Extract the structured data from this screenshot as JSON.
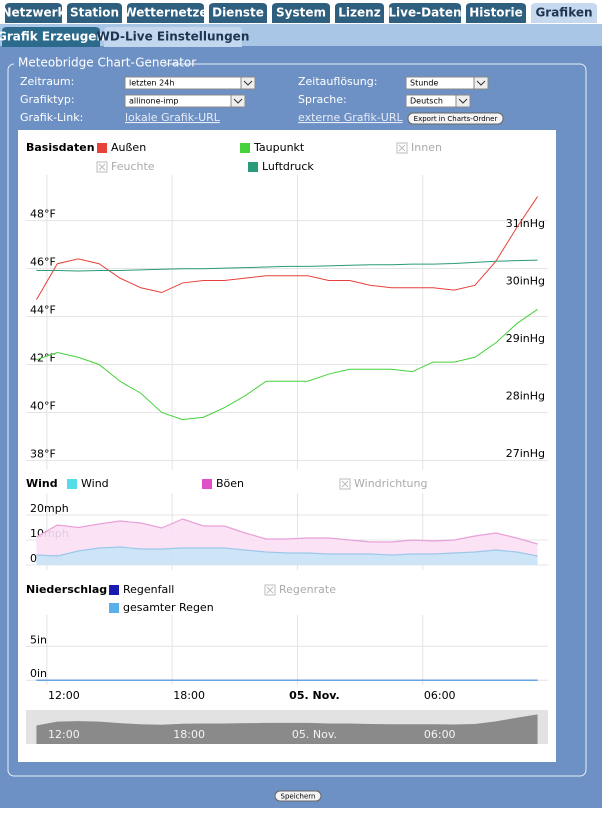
{
  "tabs": [
    "Netzwerk",
    "Station",
    "Wetternetze",
    "Dienste",
    "System",
    "Lizenz",
    "Live-Daten",
    "Historie",
    "Grafiken"
  ],
  "subtabs": [
    "Grafik Erzeugen",
    "WD-Live Einstellungen"
  ],
  "form": {
    "legend": "Meteobridge Chart-Generator",
    "zeitraum": {
      "label": "Zeitraum:",
      "value": "letzten 24h"
    },
    "aufloesung": {
      "label": "Zeitauflösung:",
      "value": "Stunde"
    },
    "grafiktyp": {
      "label": "Grafiktyp:",
      "value": "allinone-imp"
    },
    "sprache": {
      "label": "Sprache:",
      "value": "Deutsch"
    },
    "link": {
      "label": "Grafik-Link:",
      "local": "lokale Grafik-URL",
      "external": "externe Grafik-URL",
      "export": "Export in Charts-Ordner"
    }
  },
  "save": "Speichern",
  "chart_data": [
    {
      "type": "line",
      "title": "Basisdaten",
      "x": [
        11.5,
        12.5,
        13.5,
        14.5,
        15.5,
        16.5,
        17.5,
        18.5,
        19.5,
        20.5,
        21.5,
        22.5,
        23.5,
        24.5,
        25.5,
        26.5,
        27.5,
        28.5,
        29.5,
        30.5,
        31.5,
        32.5,
        33.5,
        34.5,
        35.5
      ],
      "xlim": [
        11,
        36
      ],
      "ylim": [
        37.6,
        49.9
      ],
      "yticks": [
        {
          "value": 38,
          "label": "38°F"
        },
        {
          "value": 40,
          "label": "40°F"
        },
        {
          "value": 42,
          "label": "42°F"
        },
        {
          "value": 44,
          "label": "44°F"
        },
        {
          "value": 46,
          "label": "46°F"
        },
        {
          "value": 48,
          "label": "48°F"
        }
      ],
      "y2lim": [
        26.83,
        31.96
      ],
      "y2ticks": [
        {
          "value": 27,
          "label": "27inHg"
        },
        {
          "value": 28,
          "label": "28inHg"
        },
        {
          "value": 29,
          "label": "29inHg"
        },
        {
          "value": 30,
          "label": "30inHg"
        },
        {
          "value": 31,
          "label": "31inHg"
        }
      ],
      "grid": true,
      "series": [
        {
          "name": "Außen",
          "color": "#e8403a",
          "values": [
            44.7,
            46.2,
            46.4,
            46.2,
            45.6,
            45.2,
            45.0,
            45.4,
            45.5,
            45.5,
            45.6,
            45.7,
            45.7,
            45.7,
            45.5,
            45.5,
            45.3,
            45.2,
            45.2,
            45.2,
            45.1,
            45.3,
            46.3,
            47.7,
            49.0
          ]
        },
        {
          "name": "Taupunkt",
          "color": "#44d13a",
          "values": [
            42.2,
            42.5,
            42.3,
            42.0,
            41.3,
            40.8,
            40.0,
            39.7,
            39.8,
            40.2,
            40.7,
            41.3,
            41.3,
            41.3,
            41.6,
            41.8,
            41.8,
            41.8,
            41.7,
            42.1,
            42.1,
            42.3,
            42.9,
            43.7,
            44.3
          ]
        },
        {
          "name": "Luftdruck",
          "color": "#2a9a7a",
          "axis": "y2",
          "values": [
            30.3,
            30.3,
            30.29,
            30.3,
            30.3,
            30.31,
            30.32,
            30.33,
            30.33,
            30.34,
            30.35,
            30.36,
            30.37,
            30.37,
            30.38,
            30.39,
            30.4,
            30.4,
            30.41,
            30.41,
            30.42,
            30.44,
            30.46,
            30.47,
            30.48
          ]
        }
      ],
      "legend_inactive": [
        "Innen",
        "Feuchte"
      ]
    },
    {
      "type": "area",
      "title": "Wind",
      "x": [
        11.5,
        12.5,
        13.5,
        14.5,
        15.5,
        16.5,
        17.5,
        18.5,
        19.5,
        20.5,
        21.5,
        22.5,
        23.5,
        24.5,
        25.5,
        26.5,
        27.5,
        28.5,
        29.5,
        30.5,
        31.5,
        32.5,
        33.5,
        34.5,
        35.5
      ],
      "xlim": [
        11,
        36
      ],
      "ylim": [
        -2,
        28.8
      ],
      "yticks": [
        {
          "value": 0,
          "label": "0mph"
        },
        {
          "value": 10,
          "label": "10mph"
        },
        {
          "value": 20,
          "label": "20mph"
        }
      ],
      "grid": true,
      "series": [
        {
          "name": "Wind",
          "color": "#55dde8",
          "values": [
            4,
            3.6,
            5.6,
            6.8,
            7.2,
            6.4,
            6.4,
            6.8,
            6.8,
            6.8,
            6,
            5.2,
            4.8,
            4.8,
            4.4,
            4.4,
            4.4,
            4,
            4.4,
            4.4,
            4.8,
            5.2,
            6,
            5.2,
            3.6
          ]
        },
        {
          "name": "Böen",
          "color": "#e050c8",
          "values": [
            11.2,
            16,
            15,
            16.4,
            17.6,
            16.8,
            14.8,
            18.4,
            15.6,
            15.6,
            12.8,
            10.4,
            10.4,
            10.8,
            10.8,
            10,
            9.2,
            9.2,
            10,
            9.6,
            10,
            11.6,
            12.8,
            10.8,
            8.4
          ]
        }
      ],
      "legend_inactive": [
        "Windrichtung"
      ]
    },
    {
      "type": "line",
      "title": "Niederschlag",
      "x": [
        11.5,
        12.5,
        13.5,
        14.5,
        15.5,
        16.5,
        17.5,
        18.5,
        19.5,
        20.5,
        21.5,
        22.5,
        23.5,
        24.5,
        25.5,
        26.5,
        27.5,
        28.5,
        29.5,
        30.5,
        31.5,
        32.5,
        33.5,
        34.5,
        35.5
      ],
      "xlim": [
        11,
        36
      ],
      "ylim": [
        -0.7,
        9.6
      ],
      "xticks": [
        {
          "value": 12,
          "label": "12:00"
        },
        {
          "value": 18,
          "label": "18:00"
        },
        {
          "value": 24,
          "label": "05. Nov."
        },
        {
          "value": 30,
          "label": "06:00"
        }
      ],
      "yticks": [
        {
          "value": 0,
          "label": "0in"
        },
        {
          "value": 5,
          "label": "5in"
        }
      ],
      "grid": true,
      "series": [
        {
          "name": "Regenfall",
          "color": "#1a1ab0",
          "values": [
            0,
            0,
            0,
            0,
            0,
            0,
            0,
            0,
            0,
            0,
            0,
            0,
            0,
            0,
            0,
            0,
            0,
            0,
            0,
            0,
            0,
            0,
            0,
            0,
            0
          ]
        },
        {
          "name": "gesamter Regen",
          "color": "#5ab0e8",
          "values": [
            0,
            0,
            0,
            0,
            0,
            0,
            0,
            0,
            0,
            0,
            0,
            0,
            0,
            0,
            0,
            0,
            0,
            0,
            0,
            0,
            0,
            0,
            0,
            0,
            0
          ]
        }
      ],
      "legend_inactive": [
        "Regenrate"
      ]
    }
  ]
}
